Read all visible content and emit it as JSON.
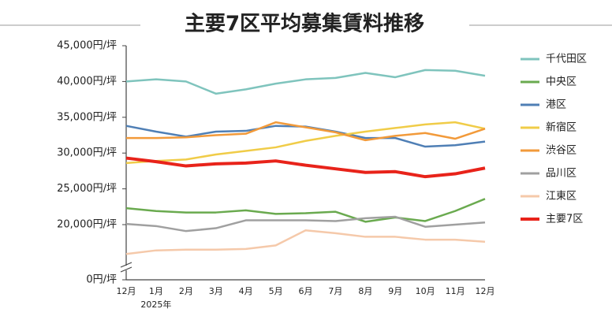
{
  "chart_data": {
    "type": "line",
    "title": "主要7区平均募集賃料推移",
    "categories": [
      "12月",
      "1月",
      "2月",
      "3月",
      "4月",
      "5月",
      "6月",
      "7月",
      "8月",
      "9月",
      "10月",
      "11月",
      "12月"
    ],
    "year_label": "2025年",
    "ylim": [
      0,
      45000
    ],
    "axis_break": true,
    "yticks": [
      {
        "value": 0,
        "label": "0円/坪"
      },
      {
        "value": 20000,
        "label": "20,000円/坪"
      },
      {
        "value": 25000,
        "label": "25,000円/坪"
      },
      {
        "value": 30000,
        "label": "30,000円/坪"
      },
      {
        "value": 35000,
        "label": "35,000円/坪"
      },
      {
        "value": 40000,
        "label": "40,000円/坪"
      },
      {
        "value": 45000,
        "label": "45,000円/坪"
      }
    ],
    "legend": "right",
    "series": [
      {
        "name": "千代田区",
        "color": "#7fc4bd",
        "values": [
          40000,
          40300,
          40000,
          38300,
          38900,
          39700,
          40300,
          40500,
          41200,
          40600,
          41600,
          41500,
          40800
        ]
      },
      {
        "name": "中央区",
        "color": "#6aaa4f",
        "values": [
          22300,
          21900,
          21700,
          21700,
          22000,
          21500,
          21600,
          21800,
          20400,
          21000,
          20500,
          21900,
          23600
        ]
      },
      {
        "name": "港区",
        "color": "#4f7fb5",
        "values": [
          33800,
          33000,
          32300,
          33000,
          33100,
          33800,
          33700,
          33000,
          32100,
          32100,
          30900,
          31100,
          31600
        ]
      },
      {
        "name": "新宿区",
        "color": "#f0cc48",
        "values": [
          28600,
          28900,
          29100,
          29800,
          30300,
          30800,
          31700,
          32400,
          33000,
          33500,
          34000,
          34300,
          33400
        ]
      },
      {
        "name": "渋谷区",
        "color": "#f29a3a",
        "values": [
          32100,
          32100,
          32200,
          32500,
          32700,
          34300,
          33600,
          32900,
          31800,
          32400,
          32800,
          32000,
          33400
        ]
      },
      {
        "name": "品川区",
        "color": "#a0a0a0",
        "values": [
          20100,
          19800,
          19100,
          19500,
          20600,
          20600,
          20600,
          20500,
          20900,
          21100,
          19700,
          20000,
          20300
        ]
      },
      {
        "name": "江東区",
        "color": "#f5c9aa",
        "values": [
          15900,
          16400,
          16500,
          16500,
          16600,
          17100,
          19200,
          18800,
          18300,
          18300,
          17900,
          17900,
          17600
        ]
      },
      {
        "name": "主要7区",
        "color": "#e8231a",
        "width": 4,
        "values": [
          29300,
          28800,
          28200,
          28500,
          28600,
          28900,
          28300,
          27800,
          27300,
          27400,
          26700,
          27100,
          27900
        ]
      }
    ]
  }
}
